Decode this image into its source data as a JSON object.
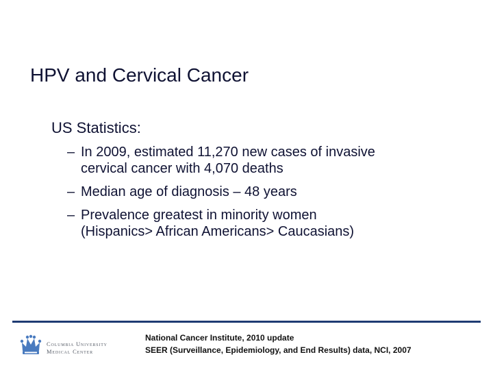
{
  "slide": {
    "title": "HPV and Cervical Cancer",
    "subheading": "US Statistics:",
    "bullets": [
      {
        "dash": "–",
        "line1": "In 2009,  estimated 11,270 new cases of invasive",
        "line2": "cervical cancer with 4,070 deaths"
      },
      {
        "dash": "–",
        "line1": "Median age of diagnosis – 48 years",
        "line2": ""
      },
      {
        "dash": "–",
        "line1": "Prevalence greatest in minority women",
        "line2": "(Hispanics> African Americans> Caucasians)"
      }
    ]
  },
  "footer": {
    "logo": {
      "icon": "columbia-crown-icon",
      "line1": "Columbia University",
      "line2": "Medical Center"
    },
    "citations": [
      "National Cancer Institute, 2010 update",
      "SEER (Surveillance, Epidemiology, and End Results) data, NCI, 2007"
    ]
  },
  "colors": {
    "text": "#0f1233",
    "accent": "#1f3b73",
    "logo": "#4a7bbf"
  }
}
